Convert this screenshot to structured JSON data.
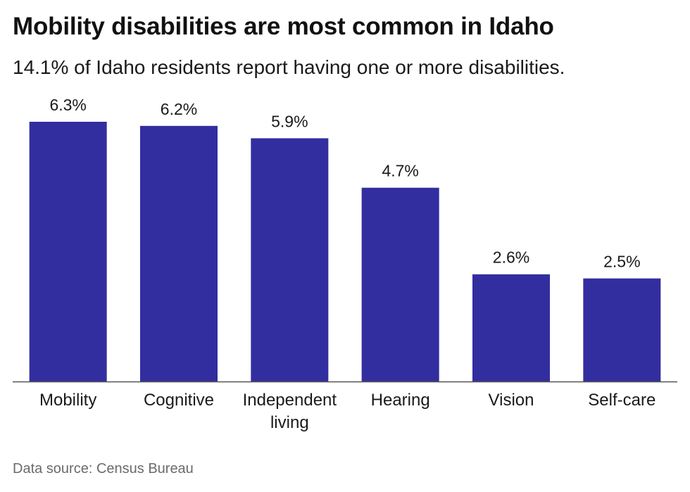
{
  "title": "Mobility disabilities are most common in Idaho",
  "subtitle": "14.1% of Idaho residents report having one or more disabilities.",
  "source": "Data source: Census Bureau",
  "colors": {
    "bar": "#322e9f",
    "axis": "#555555",
    "text": "#1a1a1a"
  },
  "chart_data": {
    "type": "bar",
    "categories": [
      "Mobility",
      "Cognitive",
      "Independent living",
      "Hearing",
      "Vision",
      "Self-care"
    ],
    "category_lines": [
      [
        "Mobility"
      ],
      [
        "Cognitive"
      ],
      [
        "Independent",
        "living"
      ],
      [
        "Hearing"
      ],
      [
        "Vision"
      ],
      [
        "Self-care"
      ]
    ],
    "values": [
      6.3,
      6.2,
      5.9,
      4.7,
      2.6,
      2.5
    ],
    "data_labels": [
      "6.3%",
      "6.2%",
      "5.9%",
      "4.7%",
      "2.6%",
      "2.5%"
    ],
    "ylim": [
      0,
      6.3
    ],
    "grid": false,
    "y_axis_shown": false
  }
}
